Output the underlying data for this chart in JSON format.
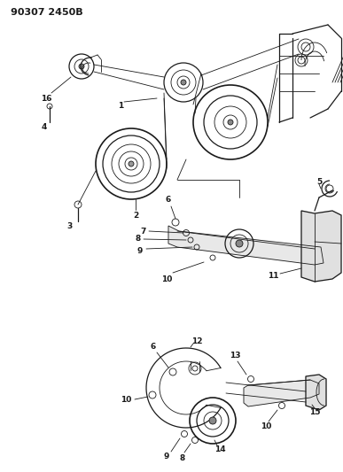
{
  "title": "90307 2450B",
  "bg_color": "#ffffff",
  "line_color": "#1a1a1a",
  "figsize": [
    3.87,
    5.33
  ],
  "dpi": 100
}
